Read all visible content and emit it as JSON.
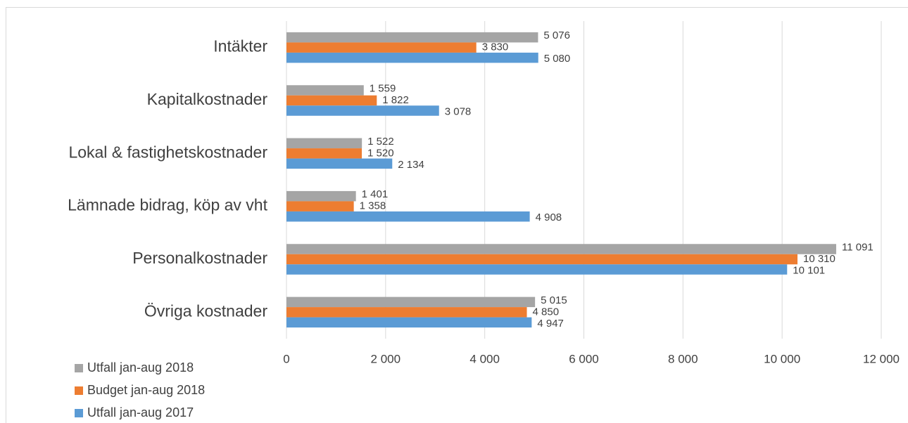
{
  "chart_data": {
    "type": "barh",
    "categories": [
      "Intäkter",
      "Kapitalkostnader",
      "Lokal & fastighetskostnader",
      "Lämnade bidrag, köp av vht",
      "Personalkostnader",
      "Övriga kostnader"
    ],
    "series": [
      {
        "name": "Utfall jan-aug 2018",
        "color": "#a5a5a5",
        "values": [
          5076,
          1559,
          1522,
          1401,
          11091,
          5015
        ],
        "value_labels": [
          "5 076",
          "1 559",
          "1 522",
          "1 401",
          "11 091",
          "5 015"
        ]
      },
      {
        "name": "Budget jan-aug 2018",
        "color": "#ed7d31",
        "values": [
          3830,
          1822,
          1520,
          1358,
          10310,
          4850
        ],
        "value_labels": [
          "3 830",
          "1 822",
          "1 520",
          "1 358",
          "10 310",
          "4 850"
        ]
      },
      {
        "name": "Utfall jan-aug 2017",
        "color": "#5b9bd5",
        "values": [
          5080,
          3078,
          2134,
          4908,
          10101,
          4947
        ],
        "value_labels": [
          "5 080",
          "3 078",
          "2 134",
          "4 908",
          "10 101",
          "4 947"
        ]
      }
    ],
    "xlim": [
      0,
      12000
    ],
    "xticks": [
      0,
      {
        "value": 2000,
        "label": "2 000"
      },
      {
        "value": 4000,
        "label": "4 000"
      },
      {
        "value": 6000,
        "label": "6 000"
      },
      {
        "value": 8000,
        "label": "8 000"
      },
      {
        "value": 10000,
        "label": "10 000"
      },
      {
        "value": 12000,
        "label": "12 000"
      }
    ],
    "grid": true,
    "legend": "bottom-left"
  }
}
